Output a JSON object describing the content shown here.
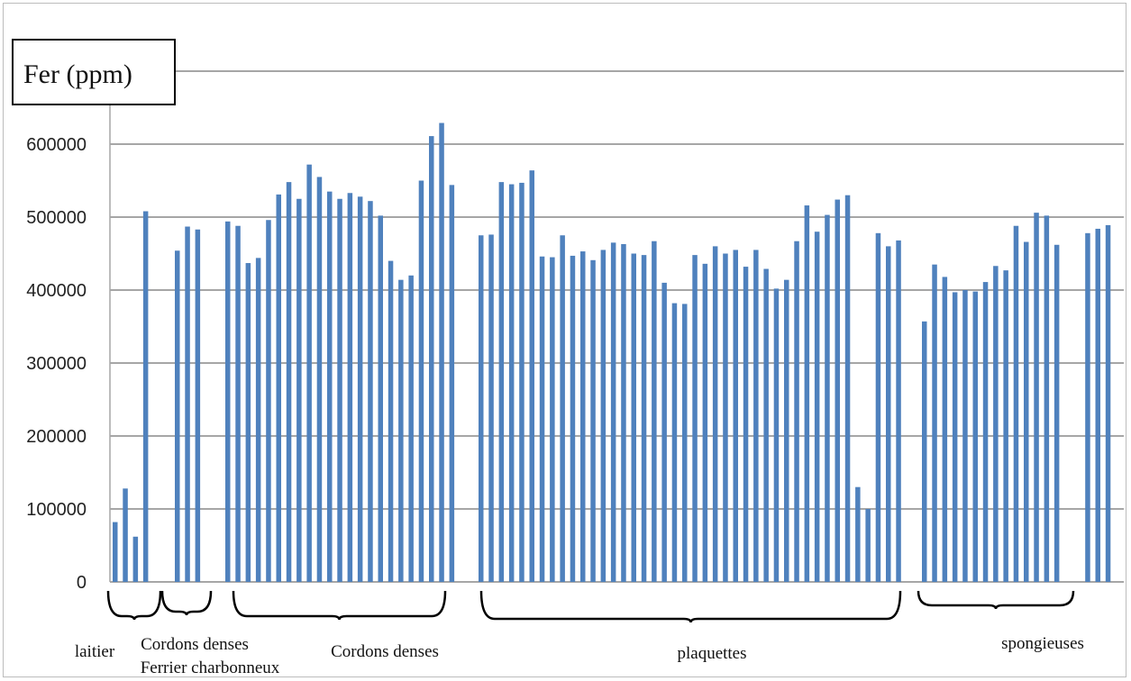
{
  "chart_data": {
    "type": "bar",
    "title": "Fer (ppm)",
    "xlabel": "",
    "ylabel": "",
    "ylim": [
      0,
      700000
    ],
    "yticks": [
      0,
      100000,
      200000,
      300000,
      400000,
      500000,
      600000
    ],
    "ytick_labels": [
      "0",
      "100000",
      "200000",
      "300000",
      "400000",
      "500000",
      "600000"
    ],
    "grid": true,
    "legend": "none",
    "bar_color": "#4f81bd",
    "groups": [
      {
        "label_lines": [
          "laitier"
        ],
        "values": [
          82000,
          128000,
          62000,
          508000
        ]
      },
      {
        "label_lines": [
          "Cordons denses",
          "Ferrier charbonneux"
        ],
        "values": [
          454000,
          487000,
          483000
        ]
      },
      {
        "label_lines": [
          "Cordons denses"
        ],
        "values": [
          494000,
          488000,
          437000,
          444000,
          496000,
          531000,
          548000,
          525000,
          572000,
          555000,
          535000,
          525000,
          533000,
          528000,
          522000,
          502000,
          440000,
          414000,
          420000,
          550000,
          611000,
          629000,
          544000
        ]
      },
      {
        "label_lines": [
          "plaquettes"
        ],
        "values": [
          475000,
          476000,
          548000,
          545000,
          547000,
          564000,
          446000,
          445000,
          475000,
          447000,
          453000,
          441000,
          455000,
          465000,
          463000,
          450000,
          448000,
          467000,
          410000,
          382000,
          381000,
          448000,
          436000,
          460000,
          450000,
          455000,
          432000,
          455000,
          429000,
          402000,
          414000,
          467000,
          516000,
          480000,
          503000,
          524000,
          530000,
          130000,
          100000,
          478000,
          460000,
          468000
        ]
      },
      {
        "label_lines": [
          "spongieuses"
        ],
        "values": [
          357000,
          435000,
          418000,
          397000,
          400000,
          398000,
          411000,
          433000,
          427000,
          488000,
          466000,
          506000,
          502000,
          462000,
          478000,
          484000,
          489000
        ]
      }
    ]
  }
}
